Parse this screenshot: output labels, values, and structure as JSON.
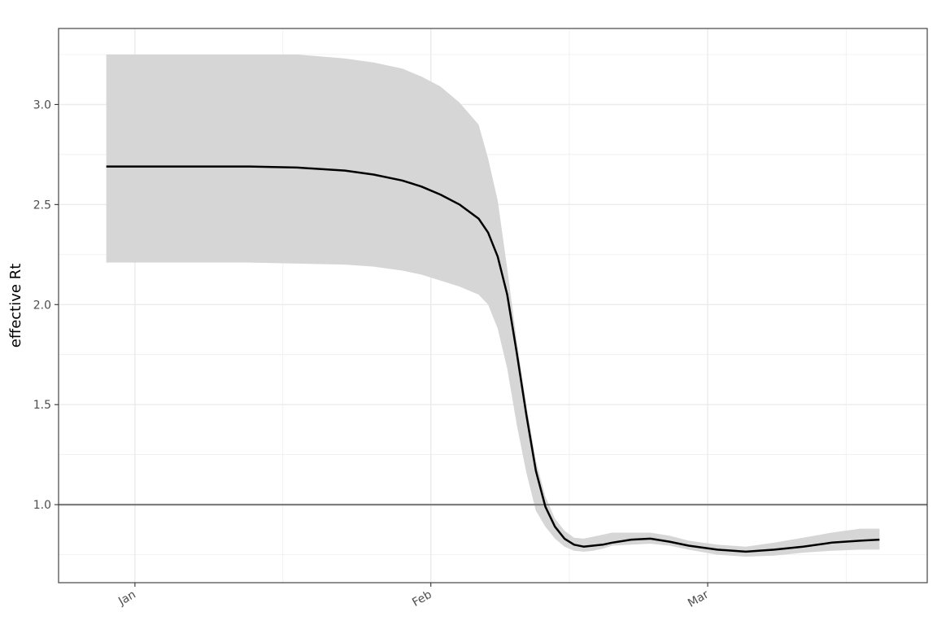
{
  "chart_data": {
    "type": "line",
    "title": "",
    "xlabel": "",
    "ylabel": "effective Rt",
    "x_ticks": [
      {
        "date": "2020-01-01",
        "label": "Jan"
      },
      {
        "date": "2020-02-01",
        "label": "Feb"
      },
      {
        "date": "2020-03-01",
        "label": "Mar"
      }
    ],
    "y_ticks": [
      1.0,
      1.5,
      2.0,
      2.5,
      3.0
    ],
    "y_tick_labels": [
      "1.0",
      "1.5",
      "2.0",
      "2.5",
      "3.0"
    ],
    "xlim": [
      "2019-12-24",
      "2020-03-24"
    ],
    "ylim": [
      0.61,
      3.38
    ],
    "grid": true,
    "reference_line": {
      "y": 1.0,
      "color": "#7f7f7f"
    },
    "colors": {
      "line": "#000000",
      "ribbon": "#d6d6d6",
      "grid": "#ebebeb",
      "panel_border": "#333333"
    },
    "series": [
      {
        "x": [
          "2019-12-29",
          "2020-01-03",
          "2020-01-08",
          "2020-01-13",
          "2020-01-18",
          "2020-01-23",
          "2020-01-26",
          "2020-01-29",
          "2020-01-31",
          "2020-02-02",
          "2020-02-04",
          "2020-02-06",
          "2020-02-07",
          "2020-02-08",
          "2020-02-09",
          "2020-02-10",
          "2020-02-11",
          "2020-02-12",
          "2020-02-13",
          "2020-02-14",
          "2020-02-15",
          "2020-02-16",
          "2020-02-17",
          "2020-02-18",
          "2020-02-19",
          "2020-02-20",
          "2020-02-22",
          "2020-02-24",
          "2020-02-26",
          "2020-02-28",
          "2020-03-02",
          "2020-03-05",
          "2020-03-08",
          "2020-03-11",
          "2020-03-14",
          "2020-03-17",
          "2020-03-19"
        ],
        "y": [
          2.69,
          2.69,
          2.69,
          2.69,
          2.685,
          2.67,
          2.65,
          2.62,
          2.59,
          2.55,
          2.5,
          2.43,
          2.36,
          2.24,
          2.05,
          1.76,
          1.45,
          1.17,
          0.99,
          0.89,
          0.83,
          0.8,
          0.79,
          0.795,
          0.8,
          0.81,
          0.825,
          0.83,
          0.815,
          0.795,
          0.775,
          0.765,
          0.775,
          0.79,
          0.81,
          0.82,
          0.825
        ],
        "lower": [
          2.21,
          2.21,
          2.21,
          2.21,
          2.205,
          2.2,
          2.19,
          2.17,
          2.15,
          2.12,
          2.09,
          2.05,
          2.0,
          1.88,
          1.68,
          1.4,
          1.16,
          0.97,
          0.89,
          0.83,
          0.79,
          0.77,
          0.765,
          0.77,
          0.78,
          0.795,
          0.8,
          0.805,
          0.795,
          0.775,
          0.75,
          0.74,
          0.745,
          0.76,
          0.77,
          0.775,
          0.775
        ],
        "upper": [
          3.25,
          3.25,
          3.25,
          3.25,
          3.25,
          3.23,
          3.21,
          3.18,
          3.14,
          3.09,
          3.01,
          2.9,
          2.73,
          2.52,
          2.18,
          1.82,
          1.5,
          1.22,
          1.04,
          0.93,
          0.87,
          0.835,
          0.83,
          0.84,
          0.85,
          0.86,
          0.86,
          0.86,
          0.845,
          0.82,
          0.8,
          0.79,
          0.81,
          0.835,
          0.86,
          0.88,
          0.88
        ]
      }
    ]
  }
}
